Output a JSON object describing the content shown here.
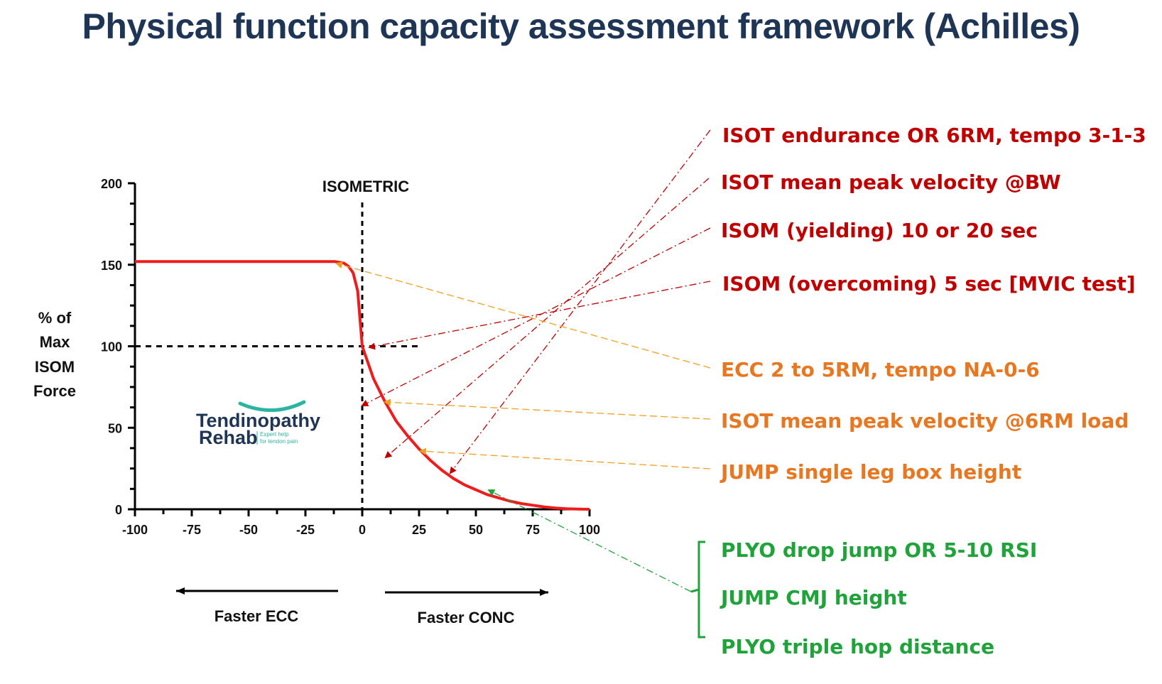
{
  "title": "Physical function capacity assessment framework (Achilles)",
  "colors": {
    "title": "#1f3556",
    "red": "#c00000",
    "orange": "#e87722",
    "green": "#1fa33a",
    "curve": "#ee1c1c",
    "teal": "#2bb5a0",
    "navy": "#1f3556"
  },
  "chart_data": {
    "type": "line",
    "title": "",
    "x_ticks": [
      "-100",
      "-75",
      "-50",
      "-25",
      "0",
      "25",
      "50",
      "75",
      "100"
    ],
    "y_ticks": [
      "0",
      "50",
      "100",
      "150",
      "200"
    ],
    "xlim": [
      -100,
      100
    ],
    "ylim": [
      0,
      200
    ],
    "ylabel": [
      "% of",
      "Max",
      "ISOM",
      "Force"
    ],
    "isometric_label": "ISOMETRIC",
    "direction_left": "Faster ECC",
    "direction_right": "Faster CONC",
    "series": [
      {
        "x": [
          -100,
          -20,
          -12,
          -8,
          -6,
          -4,
          -2,
          0,
          5,
          10,
          15,
          20,
          25,
          30,
          35,
          40,
          45,
          50,
          55,
          60,
          65,
          70,
          75,
          80,
          85,
          90,
          95,
          100
        ],
        "y": [
          152,
          152,
          152,
          151,
          149,
          145,
          134,
          100,
          80,
          66,
          54,
          45,
          37,
          30,
          24,
          19,
          15,
          12,
          9,
          7,
          5,
          3.5,
          2.5,
          1.5,
          0.8,
          0.3,
          0.1,
          0
        ]
      }
    ],
    "reference_lines": {
      "vertical_x": 0,
      "horizontal_y": 100
    }
  },
  "labels": {
    "red": [
      "ISOT endurance OR 6RM, tempo 3-1-3",
      "ISOT mean peak velocity @BW",
      "ISOM (yielding) 10 or 20 sec",
      "ISOM (overcoming) 5 sec [MVIC test]"
    ],
    "orange": [
      "ECC 2 to 5RM, tempo NA-0-6",
      "ISOT mean peak velocity @6RM load",
      "JUMP single leg box height"
    ],
    "green": [
      "PLYO drop jump OR 5-10 RSI",
      "JUMP CMJ height",
      "PLYO triple hop distance"
    ]
  },
  "logo": {
    "line1": "Tendinopathy",
    "line2": "Rehab",
    "tagline1": "Expert help",
    "tagline2": "for tendon pain"
  }
}
